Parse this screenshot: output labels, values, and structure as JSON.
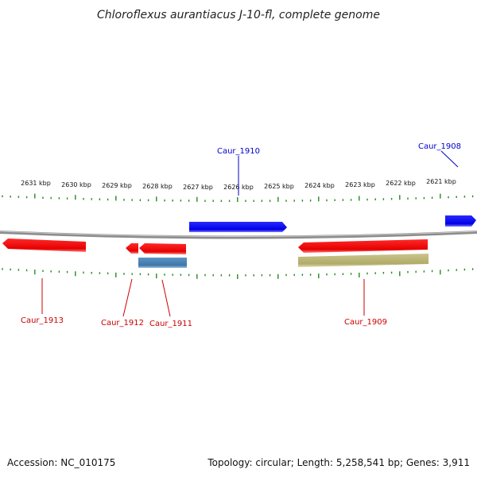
{
  "title": "Chloroflexus aurantiacus J-10-fl, complete genome",
  "footer": {
    "accession": "Accession: NC_010175",
    "summary": "Topology: circular; Length: 5,258,541 bp; Genes: 3,911"
  },
  "colors": {
    "forward": "#0000ee",
    "reverse": "#ee0000",
    "rna": "#4682b4",
    "other": "#bdb76b",
    "backbone": "#8c8c8c",
    "tick": "#228b22"
  },
  "scale_labels": [
    "2631 kbp",
    "2630 kbp",
    "2629 kbp",
    "2628 kbp",
    "2627 kbp",
    "2626 kbp",
    "2625 kbp",
    "2624 kbp",
    "2623 kbp",
    "2622 kbp",
    "2621 kbp"
  ],
  "gene_labels": [
    {
      "name": "Caur_1910",
      "strand": "forward"
    },
    {
      "name": "Caur_1908",
      "strand": "forward"
    },
    {
      "name": "Caur_1913",
      "strand": "reverse"
    },
    {
      "name": "Caur_1912",
      "strand": "reverse"
    },
    {
      "name": "Caur_1911",
      "strand": "reverse"
    },
    {
      "name": "Caur_1909",
      "strand": "reverse"
    }
  ]
}
